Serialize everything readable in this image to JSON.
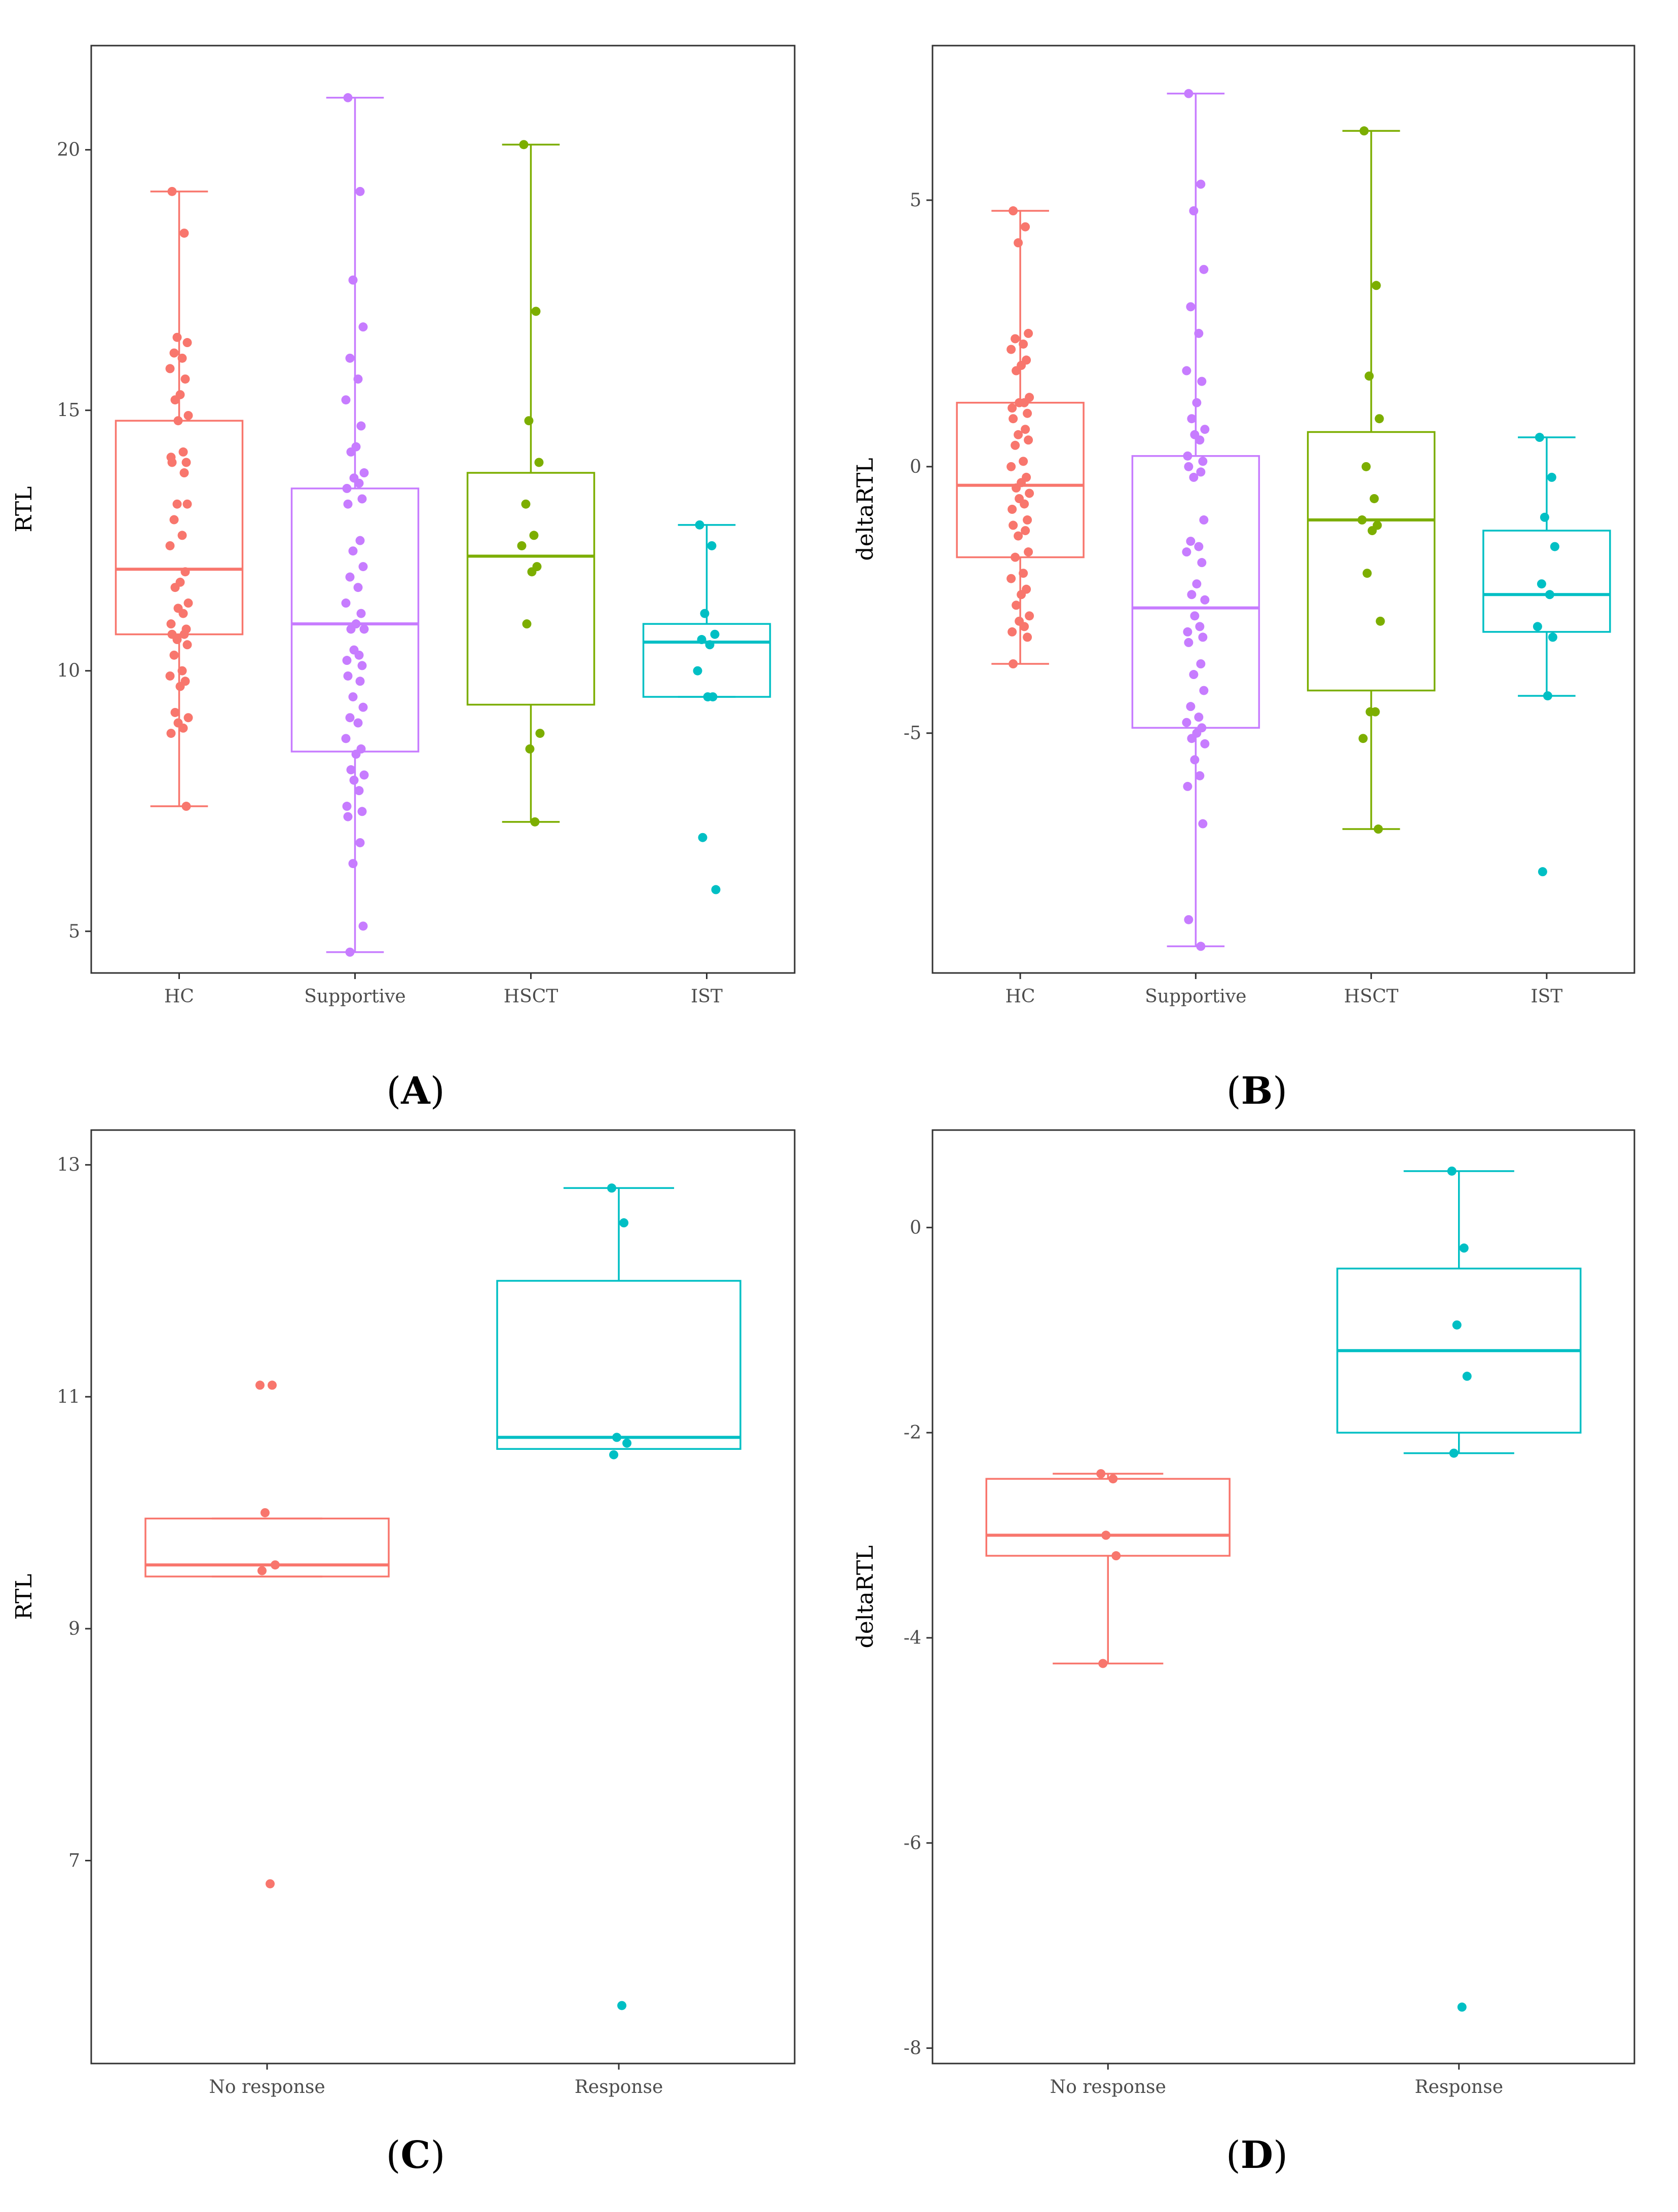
{
  "chart_data": [
    {
      "panel": "A",
      "type": "box",
      "ylabel": "RTL",
      "ylim": [
        4.2,
        22.0
      ],
      "yticks": [
        5,
        10,
        15,
        20
      ],
      "categories": [
        "HC",
        "Supportive",
        "HSCT",
        "IST"
      ],
      "colors": [
        "#F8766D",
        "#C77CFF",
        "#7CAE00",
        "#00BFC4"
      ],
      "boxes": [
        {
          "q1": 10.7,
          "median": 11.95,
          "q3": 14.8,
          "whisker_low": 7.4,
          "whisker_high": 19.2
        },
        {
          "q1": 8.45,
          "median": 10.9,
          "q3": 13.5,
          "whisker_low": 4.6,
          "whisker_high": 21.0
        },
        {
          "q1": 9.35,
          "median": 12.2,
          "q3": 13.8,
          "whisker_low": 7.1,
          "whisker_high": 20.1
        },
        {
          "q1": 9.5,
          "median": 10.55,
          "q3": 10.9,
          "whisker_low": 9.5,
          "whisker_high": 12.8
        }
      ],
      "points": [
        [
          19.2,
          18.4,
          16.4,
          16.3,
          16.1,
          16.0,
          15.8,
          15.6,
          15.3,
          15.2,
          14.9,
          14.8,
          14.2,
          14.1,
          14.0,
          14.0,
          13.8,
          13.2,
          13.2,
          12.9,
          12.6,
          12.4,
          11.9,
          11.7,
          11.6,
          11.3,
          11.2,
          11.1,
          10.9,
          10.8,
          10.7,
          10.7,
          10.6,
          10.5,
          10.3,
          10.0,
          9.9,
          9.8,
          9.7,
          9.2,
          9.1,
          9.0,
          8.9,
          8.8,
          7.4
        ],
        [
          21.0,
          19.2,
          17.5,
          16.6,
          16.0,
          15.6,
          15.2,
          14.7,
          14.3,
          14.2,
          13.8,
          13.7,
          13.6,
          13.5,
          13.3,
          13.2,
          12.5,
          12.3,
          12.0,
          11.8,
          11.6,
          11.3,
          11.1,
          10.9,
          10.8,
          10.8,
          10.4,
          10.3,
          10.2,
          10.1,
          9.9,
          9.8,
          9.5,
          9.3,
          9.1,
          9.0,
          8.7,
          8.5,
          8.4,
          8.1,
          8.0,
          7.9,
          7.7,
          7.4,
          7.3,
          7.2,
          6.7,
          6.3,
          5.1,
          4.6
        ],
        [
          20.1,
          16.9,
          14.8,
          14.0,
          13.2,
          12.6,
          12.4,
          12.0,
          11.9,
          10.9,
          8.8,
          8.5,
          7.1
        ],
        [
          12.8,
          12.4,
          11.1,
          10.7,
          10.6,
          10.5,
          10.0,
          9.5,
          9.5,
          6.8,
          5.8
        ]
      ]
    },
    {
      "panel": "B",
      "type": "box",
      "ylabel": "deltaRTL",
      "ylim": [
        -9.5,
        7.9
      ],
      "yticks": [
        -5,
        0,
        5
      ],
      "categories": [
        "HC",
        "Supportive",
        "HSCT",
        "IST"
      ],
      "colors": [
        "#F8766D",
        "#C77CFF",
        "#7CAE00",
        "#00BFC4"
      ],
      "boxes": [
        {
          "q1": -1.7,
          "median": -0.35,
          "q3": 1.2,
          "whisker_low": -3.7,
          "whisker_high": 4.8
        },
        {
          "q1": -4.9,
          "median": -2.65,
          "q3": 0.2,
          "whisker_low": -9.0,
          "whisker_high": 7.0
        },
        {
          "q1": -4.2,
          "median": -1.0,
          "q3": 0.65,
          "whisker_low": -6.8,
          "whisker_high": 6.3
        },
        {
          "q1": -3.1,
          "median": -2.4,
          "q3": -1.2,
          "whisker_low": -4.3,
          "whisker_high": 0.55
        }
      ],
      "points": [
        [
          4.8,
          4.5,
          4.2,
          2.5,
          2.4,
          2.3,
          2.2,
          2.0,
          1.9,
          1.8,
          1.3,
          1.2,
          1.2,
          1.1,
          1.0,
          0.9,
          0.7,
          0.6,
          0.5,
          0.4,
          0.1,
          0.0,
          -0.2,
          -0.3,
          -0.4,
          -0.5,
          -0.6,
          -0.7,
          -0.8,
          -1.0,
          -1.1,
          -1.2,
          -1.3,
          -1.6,
          -1.7,
          -2.0,
          -2.1,
          -2.3,
          -2.4,
          -2.6,
          -2.8,
          -2.9,
          -3.0,
          -3.1,
          -3.2,
          -3.7
        ],
        [
          7.0,
          5.3,
          4.8,
          3.7,
          3.0,
          2.5,
          1.8,
          1.6,
          1.2,
          0.9,
          0.7,
          0.6,
          0.5,
          0.2,
          0.1,
          0.0,
          -0.1,
          -0.2,
          -1.0,
          -1.4,
          -1.5,
          -1.6,
          -1.8,
          -2.2,
          -2.4,
          -2.5,
          -2.8,
          -3.0,
          -3.1,
          -3.2,
          -3.3,
          -3.7,
          -3.9,
          -4.2,
          -4.5,
          -4.7,
          -4.8,
          -4.9,
          -5.0,
          -5.1,
          -5.2,
          -5.5,
          -5.8,
          -6.0,
          -6.7,
          -8.5,
          -9.0
        ],
        [
          6.3,
          3.4,
          1.7,
          0.9,
          0.0,
          -0.6,
          -1.0,
          -1.1,
          -1.2,
          -2.0,
          -2.9,
          -4.6,
          -4.6,
          -5.1,
          -6.8
        ],
        [
          0.55,
          -0.2,
          -0.95,
          -1.5,
          -2.2,
          -2.4,
          -3.0,
          -3.2,
          -4.3,
          -7.6
        ]
      ]
    },
    {
      "panel": "C",
      "type": "box",
      "ylabel": "RTL",
      "ylim": [
        5.25,
        13.3
      ],
      "yticks": [
        7,
        9,
        11,
        13
      ],
      "categories": [
        "No response",
        "Response"
      ],
      "colors": [
        "#F8766D",
        "#00BFC4"
      ],
      "boxes": [
        {
          "q1": 9.45,
          "median": 9.55,
          "q3": 9.95,
          "whisker_low": 9.45,
          "whisker_high": 9.95
        },
        {
          "q1": 10.55,
          "median": 10.65,
          "q3": 12.0,
          "whisker_low": 10.55,
          "whisker_high": 12.8
        }
      ],
      "points": [
        [
          11.1,
          11.1,
          10.0,
          9.55,
          9.5,
          6.8
        ],
        [
          12.8,
          12.5,
          10.65,
          10.6,
          10.5,
          5.75
        ]
      ]
    },
    {
      "panel": "D",
      "type": "box",
      "ylabel": "deltaRTL",
      "ylim": [
        -8.15,
        0.95
      ],
      "yticks": [
        -8,
        -6,
        -4,
        -2,
        0
      ],
      "categories": [
        "No response",
        "Response"
      ],
      "colors": [
        "#F8766D",
        "#00BFC4"
      ],
      "boxes": [
        {
          "q1": -3.2,
          "median": -3.0,
          "q3": -2.45,
          "whisker_low": -4.25,
          "whisker_high": -2.4
        },
        {
          "q1": -2.0,
          "median": -1.2,
          "q3": -0.4,
          "whisker_low": -2.2,
          "whisker_high": 0.55
        }
      ],
      "points": [
        [
          -2.4,
          -2.45,
          -3.0,
          -3.2,
          -4.25
        ],
        [
          0.55,
          -0.2,
          -0.95,
          -1.45,
          -2.2,
          -7.6
        ]
      ]
    }
  ],
  "captions": {
    "A": "A",
    "B": "B",
    "C": "C",
    "D": "D"
  }
}
